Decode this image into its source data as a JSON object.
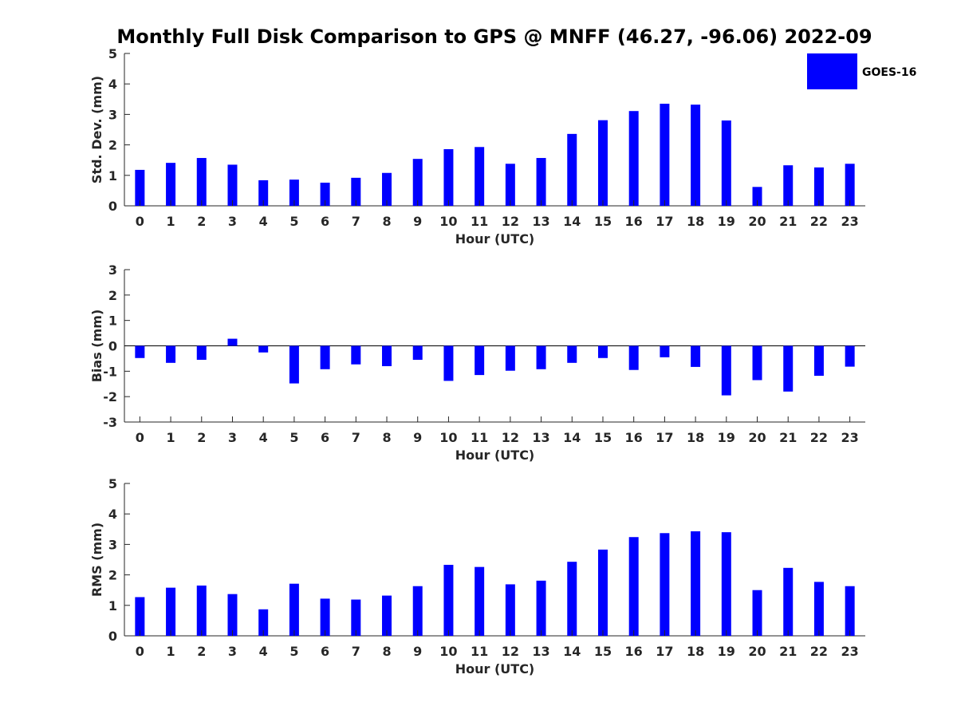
{
  "title": "Monthly Full Disk Comparison to GPS @ MNFF (46.27, -96.06) 2022-09",
  "series_color": "#0000ff",
  "legend": {
    "label": "GOES-16",
    "placement": "top-right"
  },
  "chart_data": [
    {
      "type": "bar",
      "id": "std",
      "categories": [
        "0",
        "1",
        "2",
        "3",
        "4",
        "5",
        "6",
        "7",
        "8",
        "9",
        "10",
        "11",
        "12",
        "13",
        "14",
        "15",
        "16",
        "17",
        "18",
        "19",
        "20",
        "21",
        "22",
        "23"
      ],
      "series": [
        {
          "name": "GOES-16",
          "values": [
            1.18,
            1.41,
            1.57,
            1.35,
            0.84,
            0.86,
            0.76,
            0.92,
            1.08,
            1.54,
            1.86,
            1.93,
            1.38,
            1.57,
            2.36,
            2.81,
            3.11,
            3.35,
            3.32,
            2.8,
            0.62,
            1.33,
            1.26,
            1.38
          ]
        }
      ],
      "xlabel": "Hour (UTC)",
      "ylabel": "Std. Dev. (mm)",
      "ylim": [
        0,
        5
      ],
      "yticks": [
        "0",
        "1",
        "2",
        "3",
        "4",
        "5"
      ]
    },
    {
      "type": "bar",
      "id": "bias",
      "categories": [
        "0",
        "1",
        "2",
        "3",
        "4",
        "5",
        "6",
        "7",
        "8",
        "9",
        "10",
        "11",
        "12",
        "13",
        "14",
        "15",
        "16",
        "17",
        "18",
        "19",
        "20",
        "21",
        "22",
        "23"
      ],
      "series": [
        {
          "name": "GOES-16",
          "values": [
            -0.48,
            -0.67,
            -0.55,
            0.28,
            -0.26,
            -1.48,
            -0.92,
            -0.73,
            -0.8,
            -0.55,
            -1.38,
            -1.15,
            -0.98,
            -0.92,
            -0.67,
            -0.48,
            -0.95,
            -0.45,
            -0.83,
            -1.95,
            -1.35,
            -1.8,
            -1.18,
            -0.82
          ]
        }
      ],
      "xlabel": "Hour (UTC)",
      "ylabel": "Bias (mm)",
      "ylim": [
        -3,
        3
      ],
      "yticks": [
        "-3",
        "-2",
        "-1",
        "0",
        "1",
        "2",
        "3"
      ],
      "baseline": 0
    },
    {
      "type": "bar",
      "id": "rms",
      "categories": [
        "0",
        "1",
        "2",
        "3",
        "4",
        "5",
        "6",
        "7",
        "8",
        "9",
        "10",
        "11",
        "12",
        "13",
        "14",
        "15",
        "16",
        "17",
        "18",
        "19",
        "20",
        "21",
        "22",
        "23"
      ],
      "series": [
        {
          "name": "GOES-16",
          "values": [
            1.27,
            1.58,
            1.65,
            1.37,
            0.87,
            1.71,
            1.22,
            1.19,
            1.32,
            1.63,
            2.33,
            2.26,
            1.69,
            1.81,
            2.43,
            2.83,
            3.24,
            3.37,
            3.43,
            3.4,
            1.5,
            2.23,
            1.77,
            1.63
          ]
        }
      ],
      "xlabel": "Hour (UTC)",
      "ylabel": "RMS (mm)",
      "ylim": [
        0,
        5
      ],
      "yticks": [
        "0",
        "1",
        "2",
        "3",
        "4",
        "5"
      ]
    }
  ]
}
